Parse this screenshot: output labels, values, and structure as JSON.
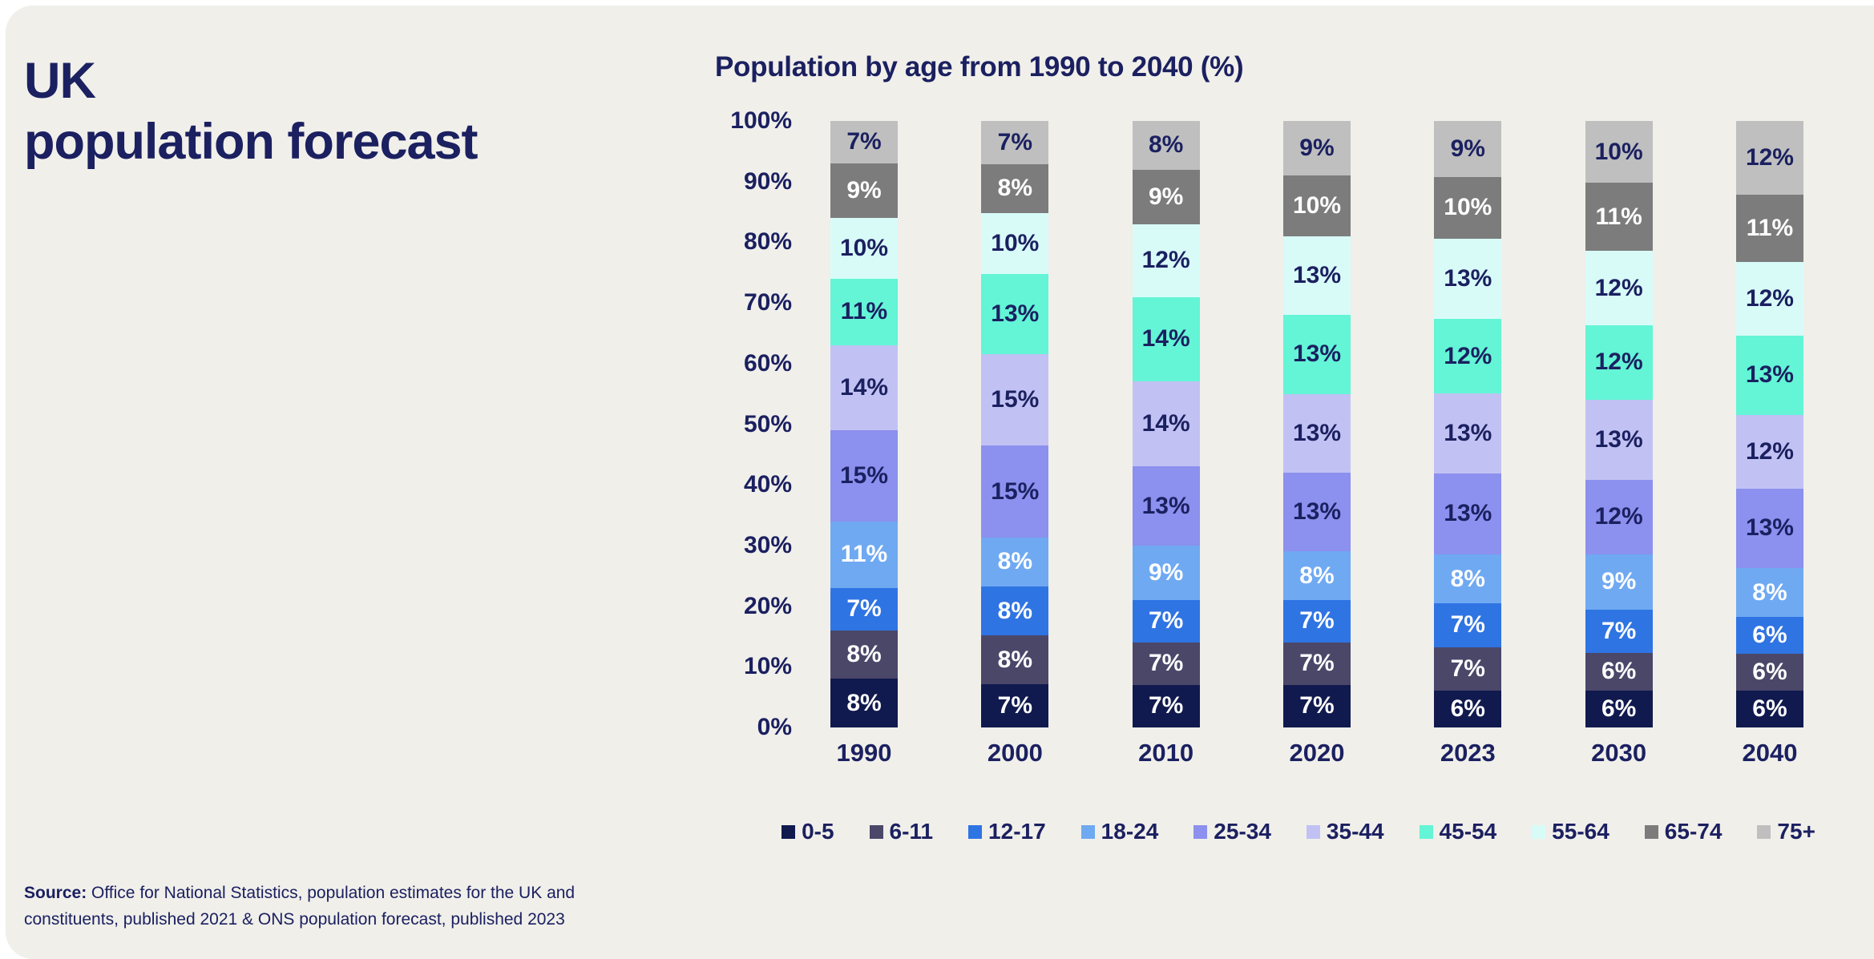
{
  "page": {
    "main_title": "UK\npopulation forecast",
    "source_label": "Source:",
    "source_text": " Office for National Statistics, population estimates for the UK and constituents, published 2021 & ONS population forecast, published 2023"
  },
  "colors": {
    "background_card": "#F0EFEA",
    "page_margin": "#FFFFFF",
    "navy_text": "#1B2060",
    "white_text": "#FFFFFF"
  },
  "chart_data": {
    "type": "bar",
    "stacked": true,
    "percent_stacked": true,
    "title": "Population by age from 1990 to 2040 (%)",
    "categories": [
      "1990",
      "2000",
      "2010",
      "2020",
      "2023",
      "2030",
      "2040"
    ],
    "y_ticks": [
      "100%",
      "90%",
      "80%",
      "70%",
      "60%",
      "50%",
      "40%",
      "30%",
      "20%",
      "10%",
      "0%"
    ],
    "ylim": [
      0,
      100
    ],
    "grid": false,
    "legend_position": "bottom",
    "series": [
      {
        "name": "0-5",
        "color": "#111A4E",
        "label_color": "#FFFFFF",
        "values": [
          8,
          7,
          7,
          7,
          6,
          6,
          6
        ]
      },
      {
        "name": "6-11",
        "color": "#4B4769",
        "label_color": "#FFFFFF",
        "values": [
          8,
          8,
          7,
          7,
          7,
          6,
          6
        ]
      },
      {
        "name": "12-17",
        "color": "#2F74E3",
        "label_color": "#FFFFFF",
        "values": [
          7,
          8,
          7,
          7,
          7,
          7,
          6
        ]
      },
      {
        "name": "18-24",
        "color": "#6FA9F2",
        "label_color": "#FFFFFF",
        "values": [
          11,
          8,
          9,
          8,
          8,
          9,
          8
        ]
      },
      {
        "name": "25-34",
        "color": "#8C90EE",
        "label_color": "#1B2060",
        "values": [
          15,
          15,
          13,
          13,
          13,
          12,
          13
        ]
      },
      {
        "name": "35-44",
        "color": "#C1C2F3",
        "label_color": "#1B2060",
        "values": [
          14,
          15,
          14,
          13,
          13,
          13,
          12
        ]
      },
      {
        "name": "45-54",
        "color": "#63F5D6",
        "label_color": "#1B2060",
        "values": [
          11,
          13,
          14,
          13,
          12,
          12,
          13
        ]
      },
      {
        "name": "55-64",
        "color": "#D8FBF8",
        "label_color": "#1B2060",
        "values": [
          10,
          10,
          12,
          13,
          13,
          12,
          12
        ]
      },
      {
        "name": "65-74",
        "color": "#7C7C7C",
        "label_color": "#FFFFFF",
        "values": [
          9,
          8,
          9,
          10,
          10,
          11,
          11
        ]
      },
      {
        "name": "75+",
        "color": "#BFBFBF",
        "label_color": "#1B2060",
        "values": [
          7,
          7,
          8,
          9,
          9,
          10,
          12
        ]
      }
    ]
  }
}
